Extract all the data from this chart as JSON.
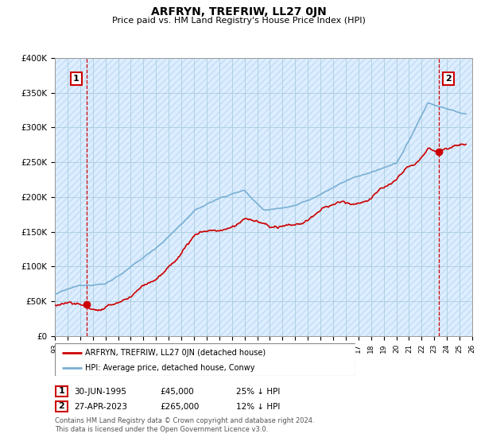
{
  "title": "ARFRYN, TREFRIW, LL27 0JN",
  "subtitle": "Price paid vs. HM Land Registry's House Price Index (HPI)",
  "ylim": [
    0,
    400000
  ],
  "xlim_start": 1993,
  "xlim_end": 2026,
  "red_line_color": "#cc0000",
  "blue_line_color": "#7ab0d4",
  "marker_color": "#cc0000",
  "grid_color": "#aaccdd",
  "bg_color": "#ddeeff",
  "annotation1_label": "1",
  "annotation2_label": "2",
  "vline1_x": 1995.5,
  "vline2_x": 2023.33,
  "point1_x": 1995.5,
  "point1_y": 45000,
  "point2_x": 2023.33,
  "point2_y": 265000,
  "legend_label_red": "ARFRYN, TREFRIW, LL27 0JN (detached house)",
  "legend_label_blue": "HPI: Average price, detached house, Conwy",
  "table_row1": [
    "1",
    "30-JUN-1995",
    "£45,000",
    "25% ↓ HPI"
  ],
  "table_row2": [
    "2",
    "27-APR-2023",
    "£265,000",
    "12% ↓ HPI"
  ],
  "footnote": "Contains HM Land Registry data © Crown copyright and database right 2024.\nThis data is licensed under the Open Government Licence v3.0."
}
